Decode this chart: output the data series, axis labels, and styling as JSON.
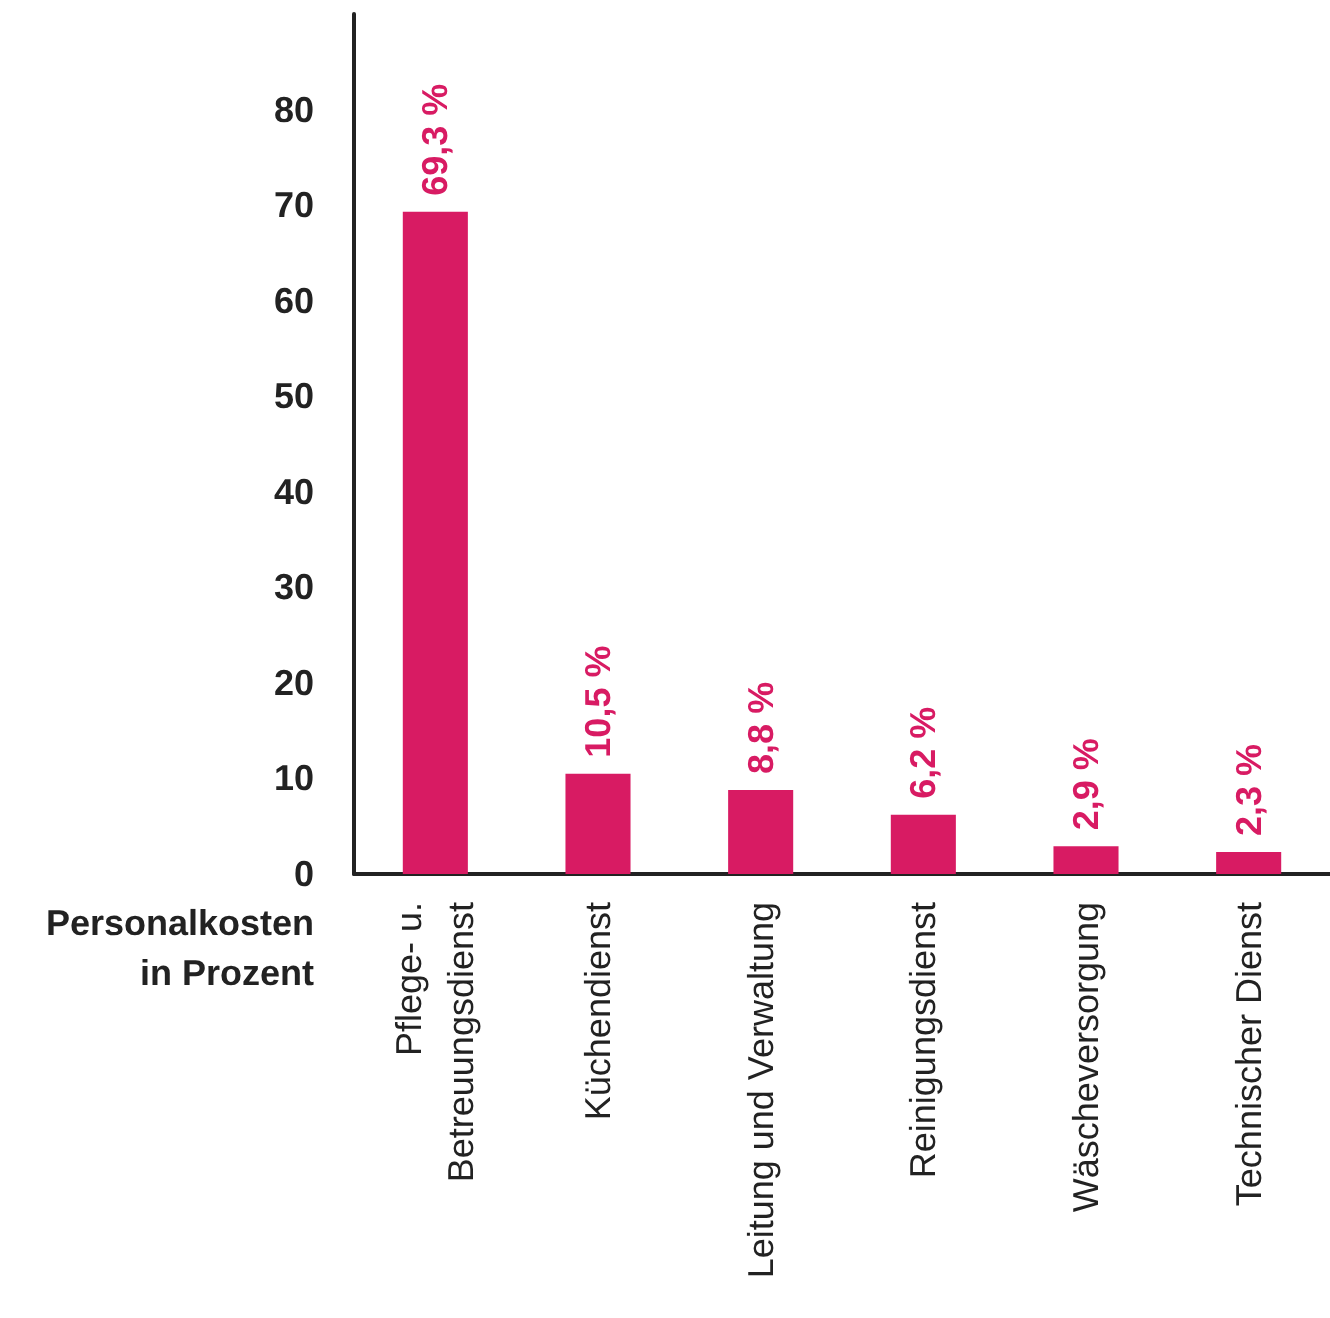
{
  "chart_data": {
    "type": "bar",
    "ylabel": "Personalkosten\nin Prozent",
    "categories": [
      "Pflege- u.\nBetreuungsdienst",
      "Küchendienst",
      "Leitung und Verwaltung",
      "Reinigungsdienst",
      "Wäscheversorgung",
      "Technischer Dienst"
    ],
    "values": [
      69.3,
      10.5,
      8.8,
      6.2,
      2.9,
      2.3
    ],
    "color": "#d81b63",
    "value_labels": [
      "69,3 %",
      "10,5 %",
      "8,8 %",
      "6,2 %",
      "2,9 %",
      "2,3 %"
    ],
    "ylim": [
      0,
      90
    ],
    "yticks": [
      0,
      10,
      20,
      30,
      40,
      50,
      60,
      70,
      80
    ]
  }
}
